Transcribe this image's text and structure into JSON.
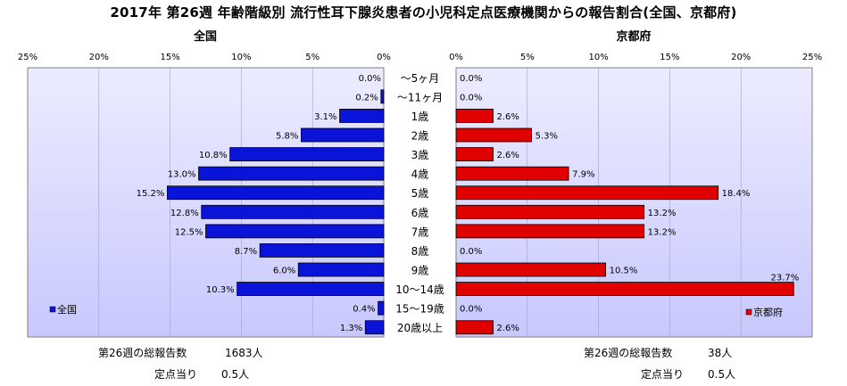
{
  "title": "2017年 第26週 年齢階級別 流行性耳下腺炎患者の小児科定点医療機関からの報告割合(全国、京都府)",
  "colors": {
    "national": "#0a14d8",
    "kyoto": "#e00000",
    "plot_bg": "#c8c8ff"
  },
  "chart_data": [
    {
      "type": "bar",
      "orientation": "horizontal",
      "direction": "right-to-left",
      "title": "全国",
      "legend": "全国",
      "legend_position": "bottom-left",
      "xlim": [
        0,
        25
      ],
      "ticks": [
        "25%",
        "20%",
        "15%",
        "10%",
        "5%",
        "0%"
      ],
      "categories": [
        "～5ヶ月",
        "～11ヶ月",
        "1歳",
        "2歳",
        "3歳",
        "4歳",
        "5歳",
        "6歳",
        "7歳",
        "8歳",
        "9歳",
        "10～14歳",
        "15～19歳",
        "20歳以上"
      ],
      "values": [
        0.0,
        0.2,
        3.1,
        5.8,
        10.8,
        13.0,
        15.2,
        12.8,
        12.5,
        8.7,
        6.0,
        10.3,
        0.4,
        1.3
      ],
      "labels": [
        "0.0%",
        "0.2%",
        "3.1%",
        "5.8%",
        "10.8%",
        "13.0%",
        "15.2%",
        "12.8%",
        "12.5%",
        "8.7%",
        "6.0%",
        "10.3%",
        "0.4%",
        "1.3%"
      ],
      "grid": true
    },
    {
      "type": "bar",
      "orientation": "horizontal",
      "direction": "left-to-right",
      "title": "京都府",
      "legend": "京都府",
      "legend_position": "bottom-right",
      "xlim": [
        0,
        25
      ],
      "ticks": [
        "0%",
        "5%",
        "10%",
        "15%",
        "20%",
        "25%"
      ],
      "categories": [
        "～5ヶ月",
        "～11ヶ月",
        "1歳",
        "2歳",
        "3歳",
        "4歳",
        "5歳",
        "6歳",
        "7歳",
        "8歳",
        "9歳",
        "10～14歳",
        "15～19歳",
        "20歳以上"
      ],
      "values": [
        0.0,
        0.0,
        2.6,
        5.3,
        2.6,
        7.9,
        18.4,
        13.2,
        13.2,
        0.0,
        10.5,
        23.7,
        0.0,
        2.6
      ],
      "labels": [
        "0.0%",
        "0.0%",
        "2.6%",
        "5.3%",
        "2.6%",
        "7.9%",
        "18.4%",
        "13.2%",
        "13.2%",
        "0.0%",
        "10.5%",
        "23.7%",
        "0.0%",
        "2.6%"
      ],
      "grid": true
    }
  ],
  "summary": {
    "national": {
      "total_label": "第26週の総報告数",
      "total_value": "1683人",
      "per_label": "定点当り",
      "per_value": "0.5人"
    },
    "kyoto": {
      "total_label": "第26週の総報告数",
      "total_value": "38人",
      "per_label": "定点当り",
      "per_value": "0.5人"
    }
  }
}
